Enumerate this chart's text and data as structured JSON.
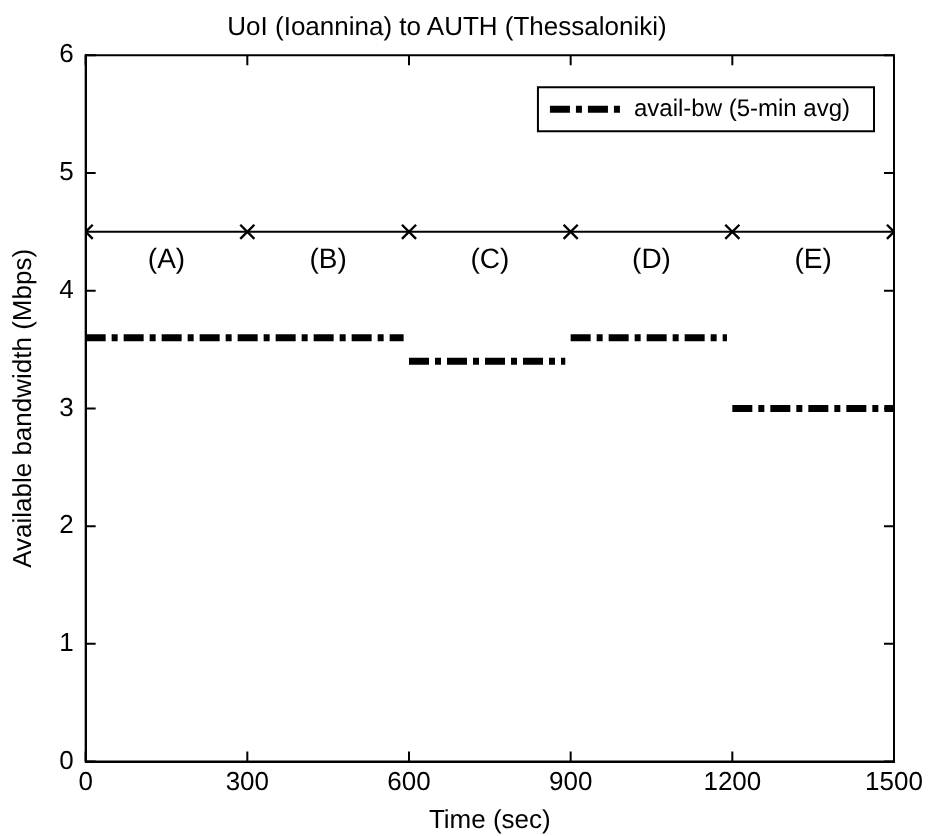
{
  "chart_data": {
    "type": "line",
    "title": "UoI (Ioannina) to AUTH (Thessaloniki)",
    "xlabel": "Time (sec)",
    "ylabel": "Available bandwidth (Mbps)",
    "xlim": [
      0,
      1500
    ],
    "xticks": [
      0,
      300,
      600,
      900,
      1200,
      1500
    ],
    "ylim": [
      0,
      6
    ],
    "yticks": [
      0,
      1,
      2,
      3,
      4,
      5,
      6
    ],
    "series": [
      {
        "name": "avail-bw (5-min avg)",
        "color": "#000000",
        "line_style": "dashed",
        "marker": "none",
        "x": [
          0,
          590,
          595,
          600,
          890,
          895,
          900,
          1190,
          1195,
          1200,
          1500
        ],
        "values": [
          3.6,
          3.6,
          null,
          3.4,
          3.4,
          null,
          3.6,
          3.6,
          null,
          3.0,
          3.0
        ]
      },
      {
        "color": "#000000",
        "line_style": "solid",
        "marker": "cross",
        "x": [
          0,
          300,
          600,
          900,
          1200,
          1500
        ],
        "values": [
          4.5,
          4.5,
          4.5,
          4.5,
          4.5,
          4.5
        ]
      }
    ],
    "annotations": [
      "(A)",
      "(B)",
      "(C)",
      "(D)",
      "(E)"
    ],
    "legend": "top right",
    "grid": false
  }
}
